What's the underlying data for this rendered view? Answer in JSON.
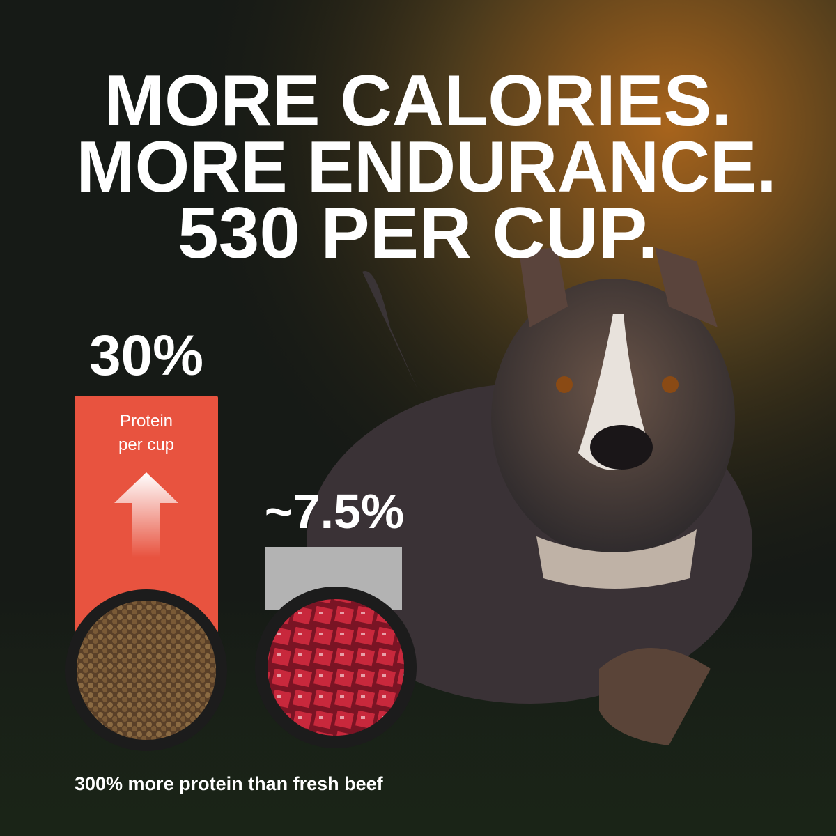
{
  "headline": {
    "lines": [
      "MORE CALORIES.",
      "MORE ENDURANCE.",
      "530 PER CUP."
    ]
  },
  "comparison": {
    "kibble": {
      "value_label": "30%",
      "bar_label": [
        "Protein",
        "per cup"
      ]
    },
    "beef": {
      "value_label": "~7.5%"
    }
  },
  "footnote": "300% more protein than fresh beef"
}
